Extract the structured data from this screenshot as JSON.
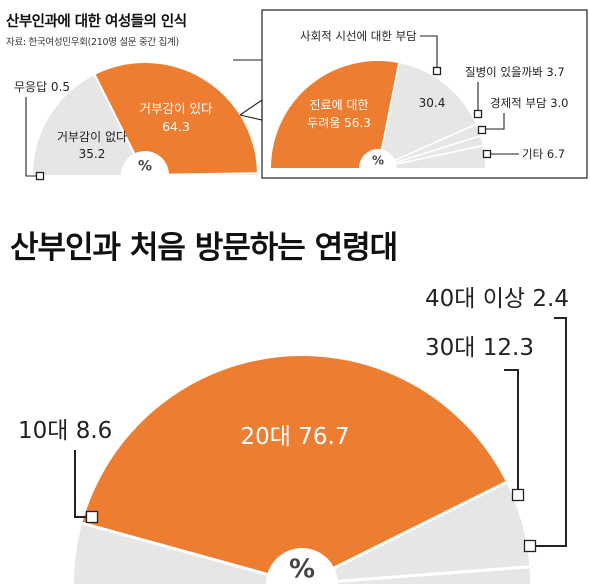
{
  "colors": {
    "orange": "#ED7D31",
    "grey": "#E6E6E6",
    "ray": "#FFFFFF",
    "line": "#222222"
  },
  "chart_data": [
    {
      "type": "pie",
      "title": "산부인과에 대한 여성들의 인식",
      "subtitle": "자료: 한국여성민우회(210명 설문 중간 집계)",
      "center_label": "%",
      "slices": [
        {
          "label": "거부감이 없다",
          "value": 35.2,
          "color": "#E6E6E6"
        },
        {
          "label": "거부감이 있다",
          "value": 64.3,
          "color": "#ED7D31"
        },
        {
          "label": "무응답",
          "value": 0.5,
          "color": "#E6E6E6"
        }
      ]
    },
    {
      "type": "pie",
      "title": "",
      "center_label": "%",
      "slices": [
        {
          "label": "진료에 대한 두려움",
          "value": 56.3,
          "color": "#ED7D31"
        },
        {
          "label": "사회적 시선에 대한 부담",
          "value": 30.4,
          "color": "#E6E6E6"
        },
        {
          "label": "질병이 있을까봐",
          "value": 3.7,
          "color": "#E6E6E6"
        },
        {
          "label": "경제적 부담",
          "value": 3.0,
          "color": "#E6E6E6"
        },
        {
          "label": "기타",
          "value": 6.7,
          "color": "#E6E6E6"
        }
      ]
    },
    {
      "type": "pie",
      "title": "산부인과 처음 방문하는 연령대",
      "center_label": "%",
      "slices": [
        {
          "label": "10대",
          "value": 8.6,
          "color": "#E6E6E6"
        },
        {
          "label": "20대",
          "value": 76.7,
          "color": "#ED7D31"
        },
        {
          "label": "30대",
          "value": 12.3,
          "color": "#E6E6E6"
        },
        {
          "label": "40대 이상",
          "value": 2.4,
          "color": "#E6E6E6"
        }
      ]
    }
  ]
}
